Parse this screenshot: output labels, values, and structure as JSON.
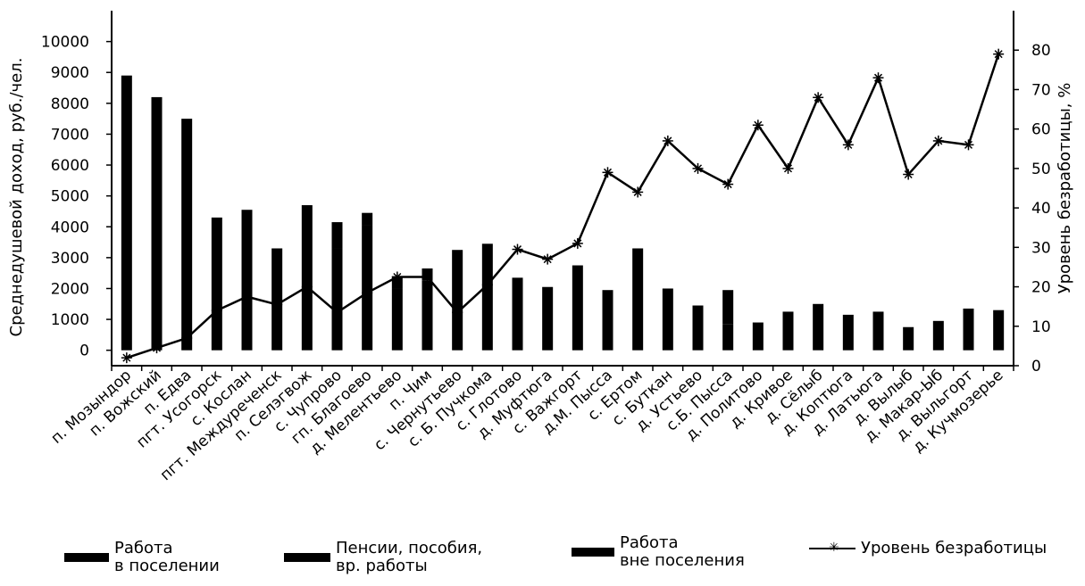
{
  "chart_data": {
    "type": "bar",
    "title": "",
    "ylabel": "Среднедушевой доход, руб./чел.",
    "y2label": "Уровень безработицы, %",
    "ylim": [
      -500,
      11000
    ],
    "y2lim": [
      0,
      90
    ],
    "y_ticks": [
      "0",
      "1000",
      "2000",
      "3000",
      "4000",
      "5000",
      "6000",
      "7000",
      "8000",
      "9000",
      "10000"
    ],
    "y2_ticks": [
      "0",
      "10",
      "20",
      "30",
      "40",
      "50",
      "60",
      "70",
      "80"
    ],
    "categories": [
      "п. Мозындор",
      "п. Вожский",
      "п. Едва",
      "пгт. Усогорск",
      "с. Кослан",
      "пгт. Междуреченск",
      "п. Селэгвож",
      "с. Чупрово",
      "гп. Благоево",
      "д. Мелентьево",
      "п. Чим",
      "с. Чернутьево",
      "с. Б. Пучкома",
      "с. Глотово",
      "д. Муфтюга",
      "с. Важгорт",
      "д.М. Пысса",
      "с. Ертом",
      "с. Буткан",
      "д. Устьево",
      "с.Б. Пысса",
      "д. Политово",
      "д. Кривое",
      "д. Сёлыб",
      "д. Коптюга",
      "д. Латьюга",
      "д. Вылыб",
      "д. Макар-Ыб",
      "д. Выльгорт",
      "д. Кучмозерье"
    ],
    "series": [
      {
        "name": "Работа\nв поселении",
        "type": "bar",
        "axis": "left",
        "color": "#000000",
        "values": [
          8900,
          8200,
          7500,
          4300,
          4550,
          3300,
          4700,
          3300,
          4050,
          2000,
          2250,
          3250,
          3450,
          2350,
          2050,
          2750,
          1950,
          3300,
          2000,
          0,
          0,
          0,
          0,
          0,
          0,
          0,
          0,
          0,
          0,
          0
        ]
      },
      {
        "name": "Пенсии, пособия,\nвр. работы",
        "type": "bar",
        "axis": "left",
        "color": "#000000",
        "values": [
          0,
          0,
          0,
          0,
          0,
          0,
          0,
          0,
          0,
          0,
          0,
          0,
          0,
          0,
          0,
          0,
          0,
          0,
          0,
          1450,
          850,
          900,
          1250,
          1500,
          1150,
          1250,
          750,
          950,
          1350,
          1300
        ]
      },
      {
        "name": "Работа\nвне поселения",
        "type": "bar",
        "axis": "left",
        "color": "#000000",
        "values": [
          0,
          0,
          0,
          0,
          0,
          0,
          0,
          850,
          400,
          400,
          400,
          0,
          0,
          0,
          0,
          0,
          0,
          0,
          0,
          0,
          1100,
          0,
          0,
          0,
          0,
          0,
          0,
          0,
          0,
          0
        ]
      },
      {
        "name": "Уровень безработицы",
        "type": "line",
        "axis": "right",
        "color": "#000000",
        "values": [
          2,
          4.5,
          7,
          14,
          17.5,
          15.5,
          20,
          13.5,
          18.5,
          22.5,
          22.5,
          13.5,
          20.5,
          29.5,
          27,
          31,
          49,
          44,
          57,
          50,
          46,
          61,
          50,
          68,
          56,
          73,
          48.5,
          57,
          56,
          79
        ]
      }
    ]
  }
}
